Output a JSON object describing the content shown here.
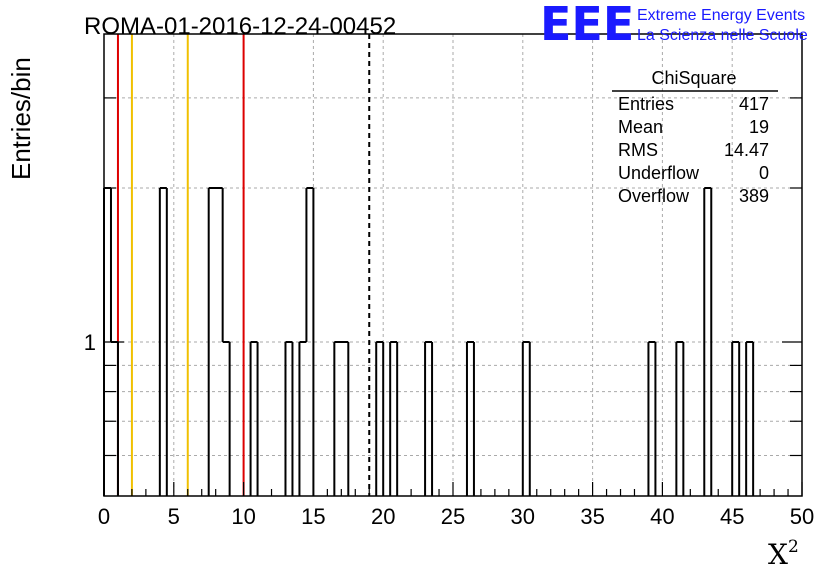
{
  "chart_data": {
    "type": "bar",
    "title": "ROMA-01-2016-12-24-00452",
    "xlabel": "X",
    "xlabel_sup": "2",
    "ylabel": "Entries/bin",
    "xlim": [
      0,
      50
    ],
    "ylim_log": [
      0.5,
      4
    ],
    "yscale": "log",
    "grid": true,
    "x_ticks": [
      0,
      5,
      10,
      15,
      20,
      25,
      30,
      35,
      40,
      45,
      50
    ],
    "y_tick_labels": [
      {
        "value": 1,
        "label": "1"
      }
    ],
    "bin_width": 0.5,
    "bins": [
      {
        "x": 0.0,
        "y": 2
      },
      {
        "x": 0.5,
        "y": 1
      },
      {
        "x": 4.0,
        "y": 2
      },
      {
        "x": 7.5,
        "y": 2
      },
      {
        "x": 8.0,
        "y": 2
      },
      {
        "x": 8.5,
        "y": 1
      },
      {
        "x": 10.5,
        "y": 1
      },
      {
        "x": 13.0,
        "y": 1
      },
      {
        "x": 14.0,
        "y": 1
      },
      {
        "x": 14.5,
        "y": 2
      },
      {
        "x": 16.5,
        "y": 1
      },
      {
        "x": 17.0,
        "y": 1
      },
      {
        "x": 19.5,
        "y": 1
      },
      {
        "x": 20.5,
        "y": 1
      },
      {
        "x": 23.0,
        "y": 1
      },
      {
        "x": 26.0,
        "y": 1
      },
      {
        "x": 30.0,
        "y": 1
      },
      {
        "x": 39.0,
        "y": 1
      },
      {
        "x": 41.0,
        "y": 1
      },
      {
        "x": 43.0,
        "y": 2
      },
      {
        "x": 45.0,
        "y": 1
      },
      {
        "x": 46.0,
        "y": 1
      }
    ],
    "vertical_lines": [
      {
        "x": 1,
        "color": "#dd0000",
        "style": "solid"
      },
      {
        "x": 2,
        "color": "#f0c000",
        "style": "solid"
      },
      {
        "x": 6,
        "color": "#f0c000",
        "style": "solid"
      },
      {
        "x": 10,
        "color": "#dd0000",
        "style": "solid"
      },
      {
        "x": 19,
        "color": "#000000",
        "style": "dashed"
      }
    ],
    "line_color": "#000000"
  },
  "stats_box": {
    "title": "ChiSquare",
    "rows": [
      {
        "label": "Entries",
        "value": "417"
      },
      {
        "label": "Mean",
        "value": "19"
      },
      {
        "label": "RMS",
        "value": "14.47"
      },
      {
        "label": "Underflow",
        "value": "0"
      },
      {
        "label": "Overflow",
        "value": "389"
      }
    ]
  },
  "logo": {
    "mark": "EEE",
    "line1": "Extreme Energy Events",
    "line2": "La Scienza nelle Scuole",
    "color": "#1a1aff"
  }
}
